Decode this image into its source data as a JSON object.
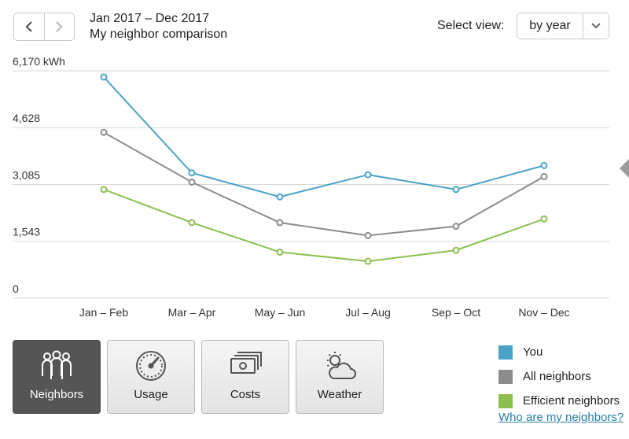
{
  "header": {
    "period": "Jan 2017 – Dec 2017",
    "subtitle": "My neighbor comparison",
    "view_label": "Select view:",
    "view_value": "by year",
    "prev_icon": "chevron-left-icon",
    "next_icon": "chevron-right-icon"
  },
  "chart_data": {
    "type": "line",
    "categories": [
      "Jan – Feb",
      "Mar – Apr",
      "May – Jun",
      "Jul – Aug",
      "Sep – Oct",
      "Nov – Dec"
    ],
    "y_ticks": [
      "6,170 kWh",
      "4,628",
      "3,085",
      "1,543",
      "0"
    ],
    "y_tick_values": [
      6170,
      4628,
      3085,
      1543,
      0
    ],
    "ylim": [
      0,
      6170
    ],
    "grid": true,
    "series": [
      {
        "name": "You",
        "color": "#4aa3c6",
        "values": [
          6000,
          3400,
          2750,
          3350,
          2950,
          3600
        ]
      },
      {
        "name": "All neighbors",
        "color": "#8c8c8c",
        "values": [
          4500,
          3150,
          2050,
          1700,
          1950,
          3300
        ]
      },
      {
        "name": "Efficient neighbors",
        "color": "#8dbf4e",
        "values": [
          2950,
          2050,
          1250,
          1000,
          1300,
          2150
        ]
      }
    ]
  },
  "tabs": [
    {
      "label": "Neighbors",
      "icon": "neighbors-icon",
      "active": true
    },
    {
      "label": "Usage",
      "icon": "gauge-icon",
      "active": false
    },
    {
      "label": "Costs",
      "icon": "money-icon",
      "active": false
    },
    {
      "label": "Weather",
      "icon": "weather-icon",
      "active": false
    }
  ],
  "legend": [
    {
      "label": "You",
      "color": "#4aa3c6"
    },
    {
      "label": "All neighbors",
      "color": "#8c8c8c"
    },
    {
      "label": "Efficient neighbors",
      "color": "#8dbf4e"
    }
  ],
  "link": "Who are my neighbors?"
}
